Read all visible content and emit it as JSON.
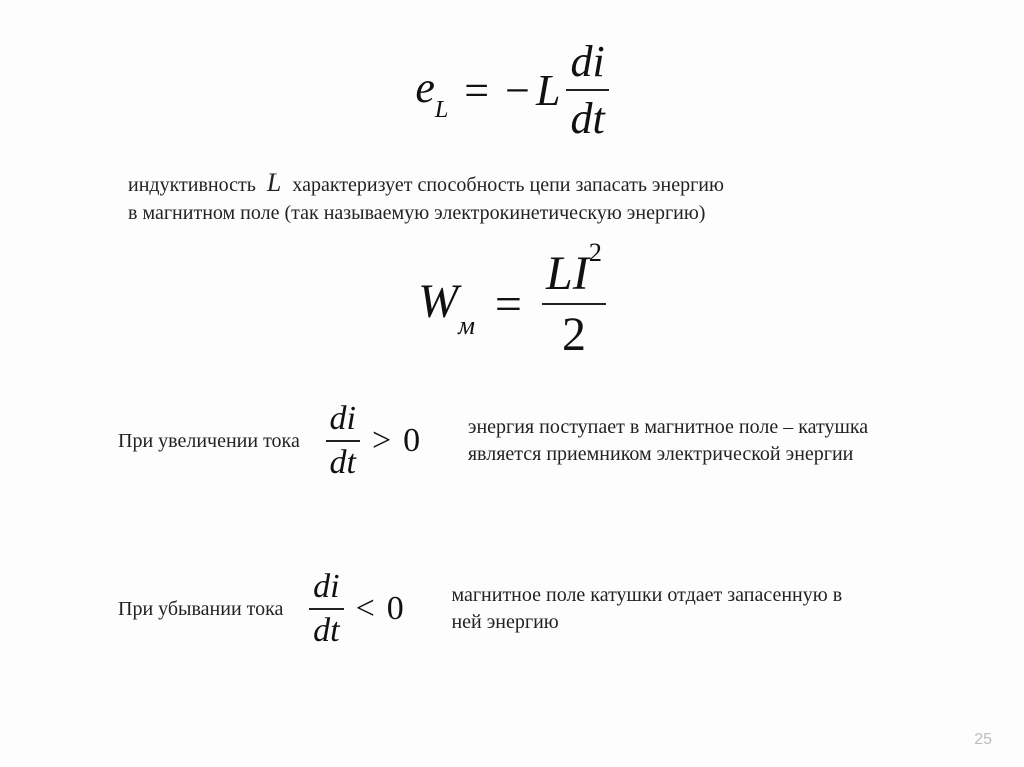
{
  "page_number": "25",
  "colors": {
    "text": "#111",
    "muted": "#bdbdbd",
    "bg": "#fdfdfd",
    "rule": "#222"
  },
  "fonts": {
    "body_family": "Times New Roman",
    "body_size_pt": 15,
    "eq_size_pt": 34
  },
  "eq1": {
    "lhs_base": "e",
    "lhs_sub": "L",
    "eq_sign": "=",
    "neg": "−",
    "coef": "L",
    "frac_num": "di",
    "frac_den": "dt"
  },
  "para1": {
    "pre": "индуктивность",
    "sym": "L",
    "post": "характеризует способность цепи запасать энергию",
    "line2": "в магнитном поле (так называемую электрокинетическую энергию)"
  },
  "eq2": {
    "lhs_base": "W",
    "lhs_sub": "м",
    "eq_sign": "=",
    "frac_num_L": "L",
    "frac_num_I": "I",
    "frac_num_sup": "2",
    "frac_den": "2"
  },
  "row1": {
    "label": "При увеличении тока",
    "frac_num": "di",
    "frac_den": "dt",
    "rel": ">",
    "rhs": "0",
    "desc_l1": "энергия поступает в магнитное поле – катушка",
    "desc_l2": "является приемником электрической энергии"
  },
  "row2": {
    "label": "При убывании тока",
    "frac_num": "di",
    "frac_den": "dt",
    "rel": "<",
    "rhs": "0",
    "desc_l1": "магнитное поле катушки отдает запасенную в",
    "desc_l2": "ней энергию"
  }
}
